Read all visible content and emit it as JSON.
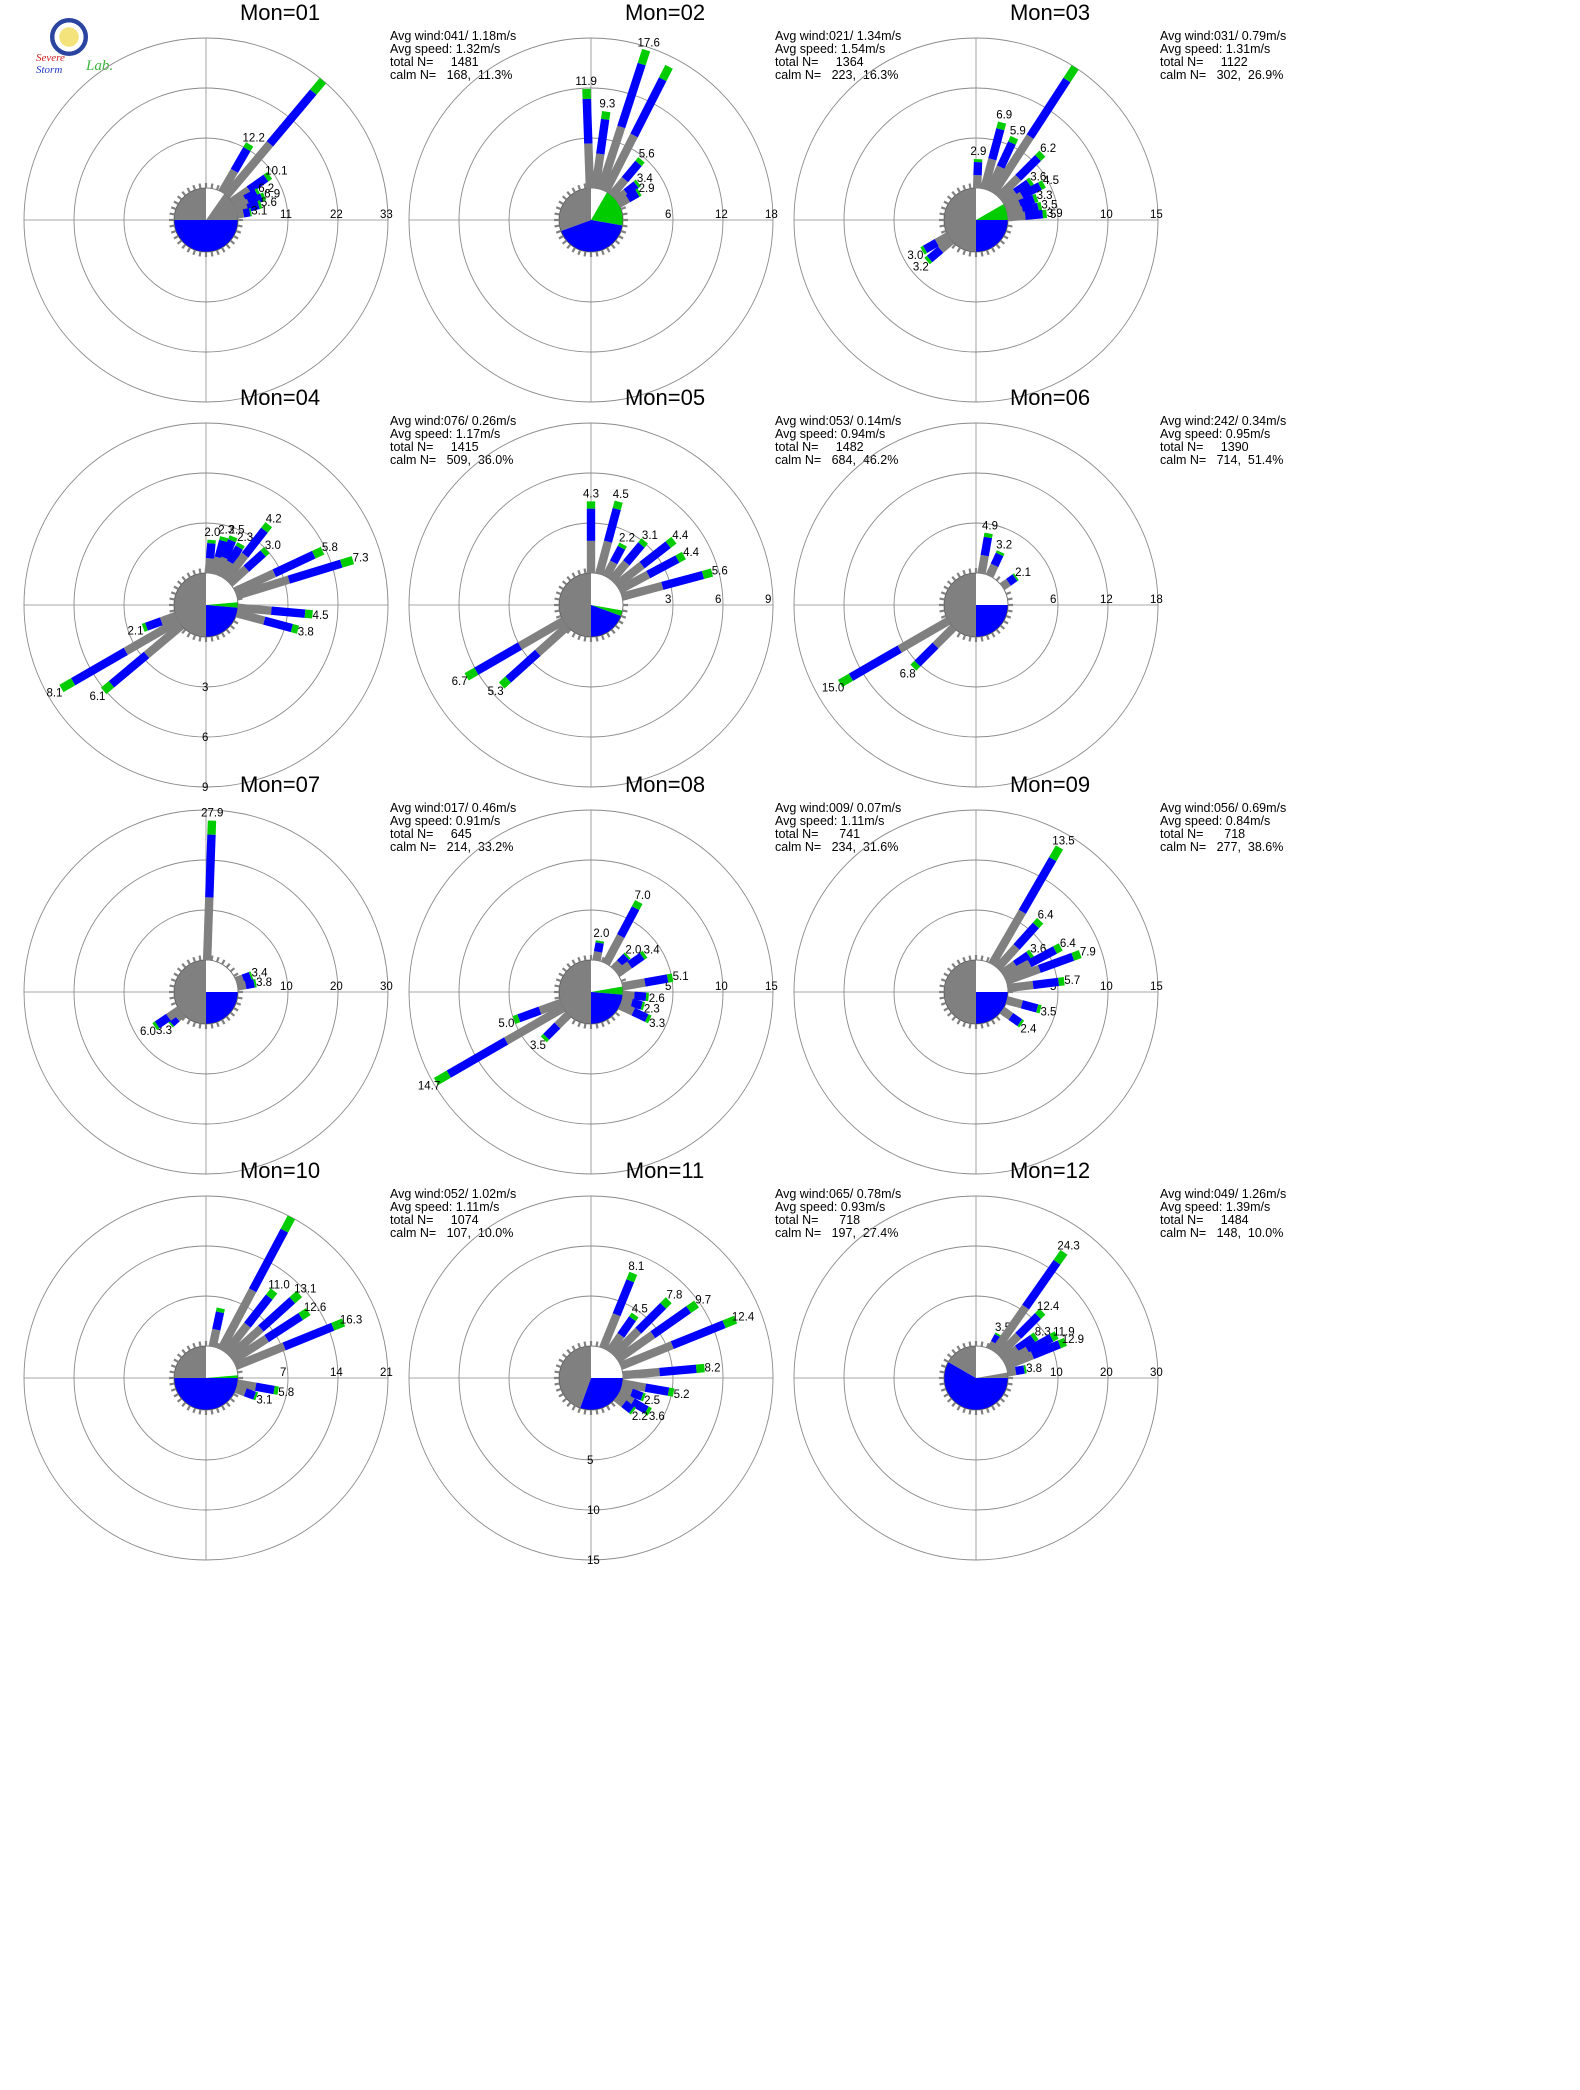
{
  "colors": {
    "low": "#808080",
    "mid": "#0000ff",
    "high": "#00cc00",
    "calm_fill": "#808080",
    "circle": "#808080",
    "line": "#000000"
  },
  "logo": {
    "line1": "Severe",
    "line2": "Storm",
    "line3": "Lab."
  },
  "chart_data": [
    {
      "type": "wind-rose",
      "title": "Mon=01",
      "stats": [
        "Avg wind:041/ 1.18m/s",
        "Avg speed: 1.32m/s",
        "total N=     1481",
        "calm N=   168,  11.3%"
      ],
      "max": 33,
      "radial_ticks": [
        11,
        22,
        33
      ],
      "tick_dir": "E",
      "calm": [
        {
          "from": 0,
          "to": 35,
          "color": "white"
        },
        {
          "from": 35,
          "to": 90,
          "color": "low"
        },
        {
          "from": 90,
          "to": 270,
          "color": "mid"
        },
        {
          "from": 270,
          "to": 360,
          "color": "low"
        }
      ],
      "petals": [
        {
          "dir": 40,
          "value": 33
        },
        {
          "dir": 30,
          "value": 12.2,
          "label": "12.2"
        },
        {
          "dir": 55,
          "value": 10.1,
          "label": "10.1"
        },
        {
          "dir": 62,
          "value": 6.2,
          "label": "6.2"
        },
        {
          "dir": 68,
          "value": 6.9,
          "label": "6.9"
        },
        {
          "dir": 74,
          "value": 5.6,
          "label": "5.6"
        },
        {
          "dir": 80,
          "value": 3.1,
          "label": "3.1"
        }
      ]
    },
    {
      "type": "wind-rose",
      "title": "Mon=02",
      "stats": [
        "Avg wind:021/ 1.34m/s",
        "Avg speed: 1.54m/s",
        "total N=     1364",
        "calm N=   223,  16.3%"
      ],
      "max": 18,
      "radial_ticks": [
        6,
        12,
        18
      ],
      "tick_dir": "E",
      "calm": [
        {
          "from": 0,
          "to": 30,
          "color": "white"
        },
        {
          "from": 30,
          "to": 100,
          "color": "high"
        },
        {
          "from": 100,
          "to": 250,
          "color": "mid"
        },
        {
          "from": 250,
          "to": 360,
          "color": "low"
        }
      ],
      "petals": [
        {
          "dir": -2,
          "value": 11.9,
          "label": "11.9"
        },
        {
          "dir": 8,
          "value": 9.3,
          "label": "9.3"
        },
        {
          "dir": 18,
          "value": 17.6,
          "label": "17.6"
        },
        {
          "dir": 27,
          "value": 16.8
        },
        {
          "dir": 40,
          "value": 5.6,
          "label": "5.6"
        },
        {
          "dir": 52,
          "value": 3.4,
          "label": "3.4"
        },
        {
          "dir": 60,
          "value": 2.9,
          "label": "2.9"
        }
      ]
    },
    {
      "type": "wind-rose",
      "title": "Mon=03",
      "stats": [
        "Avg wind:031/ 0.79m/s",
        "Avg speed: 1.31m/s",
        "total N=     1122",
        "calm N=   302,  26.9%"
      ],
      "max": 15,
      "radial_ticks": [
        5,
        10,
        15
      ],
      "tick_dir": "E",
      "calm": [
        {
          "from": 0,
          "to": 60,
          "color": "white"
        },
        {
          "from": 60,
          "to": 90,
          "color": "high"
        },
        {
          "from": 90,
          "to": 180,
          "color": "mid"
        },
        {
          "from": 180,
          "to": 360,
          "color": "low"
        }
      ],
      "petals": [
        {
          "dir": 2,
          "value": 2.9,
          "label": "2.9"
        },
        {
          "dir": 15,
          "value": 6.9,
          "label": "6.9"
        },
        {
          "dir": 25,
          "value": 5.9,
          "label": "5.9"
        },
        {
          "dir": 33,
          "value": 15
        },
        {
          "dir": 45,
          "value": 6.2,
          "label": "6.2"
        },
        {
          "dir": 55,
          "value": 3.6,
          "label": "3.6"
        },
        {
          "dir": 62,
          "value": 4.5,
          "label": "4.5"
        },
        {
          "dir": 70,
          "value": 3.3,
          "label": "3.3"
        },
        {
          "dir": 78,
          "value": 3.5,
          "label": "3.5"
        },
        {
          "dir": 85,
          "value": 3.9,
          "label": "3.9"
        },
        {
          "dir": 240,
          "value": 3.0,
          "label": "3.0"
        },
        {
          "dir": 230,
          "value": 3.2,
          "label": "3.2"
        }
      ]
    },
    {
      "type": "wind-rose",
      "title": "Mon=04",
      "stats": [
        "Avg wind:076/ 0.26m/s",
        "Avg speed: 1.17m/s",
        "total N=     1415",
        "calm N=   509,  36.0%"
      ],
      "max": 9,
      "radial_ticks": [
        3,
        6,
        9
      ],
      "tick_dir": "S",
      "calm": [
        {
          "from": 0,
          "to": 85,
          "color": "white"
        },
        {
          "from": 85,
          "to": 95,
          "color": "high"
        },
        {
          "from": 95,
          "to": 180,
          "color": "mid"
        },
        {
          "from": 180,
          "to": 360,
          "color": "low"
        }
      ],
      "petals": [
        {
          "dir": 5,
          "value": 2.0,
          "label": "2.0"
        },
        {
          "dir": 15,
          "value": 2.3,
          "label": "2.3"
        },
        {
          "dir": 22,
          "value": 2.5,
          "label": "2.5"
        },
        {
          "dir": 30,
          "value": 2.3,
          "label": "2.3"
        },
        {
          "dir": 38,
          "value": 4.2,
          "label": "4.2"
        },
        {
          "dir": 48,
          "value": 3.0,
          "label": "3.0"
        },
        {
          "dir": 65,
          "value": 5.8,
          "label": "5.8"
        },
        {
          "dir": 73,
          "value": 7.3,
          "label": "7.3"
        },
        {
          "dir": 95,
          "value": 4.5,
          "label": "4.5"
        },
        {
          "dir": 105,
          "value": 3.8,
          "label": "3.8"
        },
        {
          "dir": 240,
          "value": 8.1,
          "label": "8.1"
        },
        {
          "dir": 230,
          "value": 6.1,
          "label": "6.1"
        },
        {
          "dir": 250,
          "value": 2.1,
          "label": "2.1"
        }
      ]
    },
    {
      "type": "wind-rose",
      "title": "Mon=05",
      "stats": [
        "Avg wind:053/ 0.14m/s",
        "Avg speed: 0.94m/s",
        "total N=     1482",
        "calm N=   684,  46.2%"
      ],
      "max": 9,
      "radial_ticks": [
        3,
        6,
        9
      ],
      "tick_dir": "E",
      "calm": [
        {
          "from": 0,
          "to": 100,
          "color": "white"
        },
        {
          "from": 100,
          "to": 110,
          "color": "high"
        },
        {
          "from": 110,
          "to": 180,
          "color": "mid"
        },
        {
          "from": 180,
          "to": 360,
          "color": "low"
        }
      ],
      "petals": [
        {
          "dir": 0,
          "value": 4.3,
          "label": "4.3"
        },
        {
          "dir": 15,
          "value": 4.5,
          "label": "4.5"
        },
        {
          "dir": 28,
          "value": 2.2,
          "label": "2.2"
        },
        {
          "dir": 40,
          "value": 3.1,
          "label": "3.1"
        },
        {
          "dir": 52,
          "value": 4.4,
          "label": "4.4"
        },
        {
          "dir": 62,
          "value": 4.4,
          "label": "4.4"
        },
        {
          "dir": 75,
          "value": 5.6,
          "label": "5.6"
        },
        {
          "dir": 240,
          "value": 6.7,
          "label": "6.7"
        },
        {
          "dir": 228,
          "value": 5.3,
          "label": "5.3"
        }
      ]
    },
    {
      "type": "wind-rose",
      "title": "Mon=06",
      "stats": [
        "Avg wind:242/ 0.34m/s",
        "Avg speed: 0.95m/s",
        "total N=     1390",
        "calm N=   714,  51.4%"
      ],
      "max": 18,
      "radial_ticks": [
        6,
        12,
        18
      ],
      "tick_dir": "E",
      "calm": [
        {
          "from": 0,
          "to": 90,
          "color": "white"
        },
        {
          "from": 90,
          "to": 180,
          "color": "mid"
        },
        {
          "from": 180,
          "to": 360,
          "color": "low"
        }
      ],
      "petals": [
        {
          "dir": 10,
          "value": 4.9,
          "label": "4.9"
        },
        {
          "dir": 25,
          "value": 3.2,
          "label": "3.2"
        },
        {
          "dir": 55,
          "value": 2.1,
          "label": "2.1"
        },
        {
          "dir": 240,
          "value": 15.0,
          "label": "15.0"
        },
        {
          "dir": 225,
          "value": 6.8,
          "label": "6.8"
        }
      ]
    },
    {
      "type": "wind-rose",
      "title": "Mon=07",
      "stats": [
        "Avg wind:017/ 0.46m/s",
        "Avg speed: 0.91m/s",
        "total N=     645",
        "calm N=   214,  33.2%"
      ],
      "max": 30,
      "radial_ticks": [
        10,
        20,
        30
      ],
      "tick_dir": "E",
      "calm": [
        {
          "from": 0,
          "to": 90,
          "color": "white"
        },
        {
          "from": 90,
          "to": 180,
          "color": "mid"
        },
        {
          "from": 180,
          "to": 360,
          "color": "low"
        }
      ],
      "petals": [
        {
          "dir": 2,
          "value": 27.9,
          "label": "27.9"
        },
        {
          "dir": 70,
          "value": 3.4,
          "label": "3.4"
        },
        {
          "dir": 80,
          "value": 3.8,
          "label": "3.8"
        },
        {
          "dir": 228,
          "value": 3.3,
          "label": "3.3"
        },
        {
          "dir": 236,
          "value": 6.0,
          "label": "6.0"
        }
      ]
    },
    {
      "type": "wind-rose",
      "title": "Mon=08",
      "stats": [
        "Avg wind:009/ 0.07m/s",
        "Avg speed: 1.11m/s",
        "total N=      741",
        "calm N=   234,  31.6%"
      ],
      "max": 15,
      "radial_ticks": [
        5,
        10,
        15
      ],
      "tick_dir": "E",
      "calm": [
        {
          "from": 0,
          "to": 80,
          "color": "white"
        },
        {
          "from": 80,
          "to": 95,
          "color": "high"
        },
        {
          "from": 95,
          "to": 180,
          "color": "mid"
        },
        {
          "from": 180,
          "to": 360,
          "color": "low"
        }
      ],
      "petals": [
        {
          "dir": 10,
          "value": 2.0,
          "label": "2.0"
        },
        {
          "dir": 28,
          "value": 7.0,
          "label": "7.0"
        },
        {
          "dir": 45,
          "value": 2.0,
          "label": "2.0"
        },
        {
          "dir": 55,
          "value": 3.4,
          "label": "3.4"
        },
        {
          "dir": 80,
          "value": 5.1,
          "label": "5.1"
        },
        {
          "dir": 95,
          "value": 2.6,
          "label": "2.6"
        },
        {
          "dir": 105,
          "value": 2.3,
          "label": "2.3"
        },
        {
          "dir": 115,
          "value": 3.3,
          "label": "3.3"
        },
        {
          "dir": 240,
          "value": 14.7,
          "label": "14.7"
        },
        {
          "dir": 250,
          "value": 5.0,
          "label": "5.0"
        },
        {
          "dir": 225,
          "value": 3.5,
          "label": "3.5"
        }
      ]
    },
    {
      "type": "wind-rose",
      "title": "Mon=09",
      "stats": [
        "Avg wind:056/ 0.69m/s",
        "Avg speed: 0.84m/s",
        "total N=      718",
        "calm N=   277,  38.6%"
      ],
      "max": 15,
      "radial_ticks": [
        5,
        10,
        15
      ],
      "tick_dir": "E",
      "calm": [
        {
          "from": 0,
          "to": 90,
          "color": "white"
        },
        {
          "from": 90,
          "to": 180,
          "color": "mid"
        },
        {
          "from": 180,
          "to": 360,
          "color": "low"
        }
      ],
      "petals": [
        {
          "dir": 30,
          "value": 13.5,
          "label": "13.5"
        },
        {
          "dir": 42,
          "value": 6.4,
          "label": "6.4"
        },
        {
          "dir": 55,
          "value": 3.6,
          "label": "3.6"
        },
        {
          "dir": 62,
          "value": 6.4,
          "label": "6.4"
        },
        {
          "dir": 70,
          "value": 7.9,
          "label": "7.9"
        },
        {
          "dir": 83,
          "value": 5.7,
          "label": "5.7"
        },
        {
          "dir": 105,
          "value": 3.5,
          "label": "3.5"
        },
        {
          "dir": 125,
          "value": 2.4,
          "label": "2.4"
        }
      ]
    },
    {
      "type": "wind-rose",
      "title": "Mon=10",
      "stats": [
        "Avg wind:052/ 1.02m/s",
        "Avg speed: 1.11m/s",
        "total N=     1074",
        "calm N=   107,  10.0%"
      ],
      "max": 21,
      "radial_ticks": [
        7,
        14,
        21
      ],
      "tick_dir": "E",
      "calm": [
        {
          "from": 0,
          "to": 85,
          "color": "white"
        },
        {
          "from": 85,
          "to": 90,
          "color": "high"
        },
        {
          "from": 90,
          "to": 270,
          "color": "mid"
        },
        {
          "from": 270,
          "to": 360,
          "color": "low"
        }
      ],
      "petals": [
        {
          "dir": 12,
          "value": 5.5
        },
        {
          "dir": 28,
          "value": 21
        },
        {
          "dir": 38,
          "value": 11.0,
          "label": "11.0"
        },
        {
          "dir": 48,
          "value": 13.1,
          "label": "13.1"
        },
        {
          "dir": 57,
          "value": 12.6,
          "label": "12.6"
        },
        {
          "dir": 68,
          "value": 16.3,
          "label": "16.3"
        },
        {
          "dir": 100,
          "value": 5.8,
          "label": "5.8"
        },
        {
          "dir": 110,
          "value": 3.1,
          "label": "3.1"
        }
      ]
    },
    {
      "type": "wind-rose",
      "title": "Mon=11",
      "stats": [
        "Avg wind:065/ 0.78m/s",
        "Avg speed: 0.93m/s",
        "total N=      718",
        "calm N=   197,  27.4%"
      ],
      "max": 15,
      "radial_ticks": [
        5,
        10,
        15
      ],
      "tick_dir": "S",
      "calm": [
        {
          "from": 0,
          "to": 90,
          "color": "white"
        },
        {
          "from": 90,
          "to": 200,
          "color": "mid"
        },
        {
          "from": 200,
          "to": 360,
          "color": "low"
        }
      ],
      "petals": [
        {
          "dir": 22,
          "value": 8.1,
          "label": "8.1"
        },
        {
          "dir": 35,
          "value": 4.5,
          "label": "4.5"
        },
        {
          "dir": 45,
          "value": 7.8,
          "label": "7.8"
        },
        {
          "dir": 55,
          "value": 9.7,
          "label": "9.7"
        },
        {
          "dir": 68,
          "value": 12.4,
          "label": "12.4"
        },
        {
          "dir": 85,
          "value": 8.2,
          "label": "8.2"
        },
        {
          "dir": 100,
          "value": 5.2,
          "label": "5.2"
        },
        {
          "dir": 110,
          "value": 2.5,
          "label": "2.5"
        },
        {
          "dir": 120,
          "value": 3.6,
          "label": "3.6"
        },
        {
          "dir": 128,
          "value": 2.2,
          "label": "2.2"
        }
      ]
    },
    {
      "type": "wind-rose",
      "title": "Mon=12",
      "stats": [
        "Avg wind:049/ 1.26m/s",
        "Avg speed: 1.39m/s",
        "total N=     1484",
        "calm N=   148,  10.0%"
      ],
      "max": 30,
      "radial_ticks": [
        10,
        20,
        30
      ],
      "tick_dir": "E",
      "calm": [
        {
          "from": 0,
          "to": 80,
          "color": "white"
        },
        {
          "from": 80,
          "to": 90,
          "color": "low"
        },
        {
          "from": 90,
          "to": 300,
          "color": "mid"
        },
        {
          "from": 300,
          "to": 360,
          "color": "low"
        }
      ],
      "petals": [
        {
          "dir": 28,
          "value": 3.5,
          "label": "3.5"
        },
        {
          "dir": 35,
          "value": 24.3,
          "label": "24.3"
        },
        {
          "dir": 45,
          "value": 12.4,
          "label": "12.4"
        },
        {
          "dir": 55,
          "value": 8.3,
          "label": "8.3"
        },
        {
          "dir": 62,
          "value": 11.9,
          "label": "11.9"
        },
        {
          "dir": 68,
          "value": 12.9,
          "label": "12.9"
        },
        {
          "dir": 80,
          "value": 3.8,
          "label": "3.8"
        }
      ]
    }
  ]
}
